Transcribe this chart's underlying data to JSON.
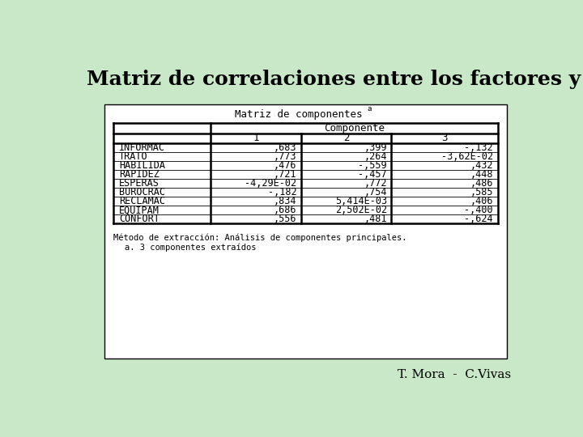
{
  "title": "Matriz de correlaciones entre los factores y las variables.",
  "background_color": "#c8e8c8",
  "table_bg": "#ffffff",
  "title_fontsize": 18,
  "table_title": "Matriz de componentes",
  "table_title_superscript": "a",
  "col_header_1": "Componente",
  "col_subheaders": [
    "1",
    "2",
    "3"
  ],
  "row_labels": [
    "INFORMAC",
    "TRATO",
    "HABILIDA",
    "RAPIDEZ",
    "ESPERAS",
    "BUROCRAC",
    "RECLAMAC",
    "EQUIPAM",
    "CONFORT"
  ],
  "col1_values": [
    ",683",
    ",773",
    ",476",
    ",721",
    "-4,29E-02",
    "-,182",
    ",834",
    ",686",
    ",556"
  ],
  "col2_values": [
    ",399",
    ",264",
    "-,559",
    "-,457",
    ",772",
    ",754",
    "5,414E-03",
    "2,502E-02",
    ",481"
  ],
  "col3_values": [
    "-,132",
    "-3,62E-02",
    ",432",
    ",448",
    ",486",
    ",585",
    ",406",
    "-,400",
    "-,624"
  ],
  "footnote1": "Método de extracción: Análisis de componentes principales.",
  "footnote2": "a. 3 componentes extraídos",
  "author": "T. Mora  -  C.Vivas"
}
